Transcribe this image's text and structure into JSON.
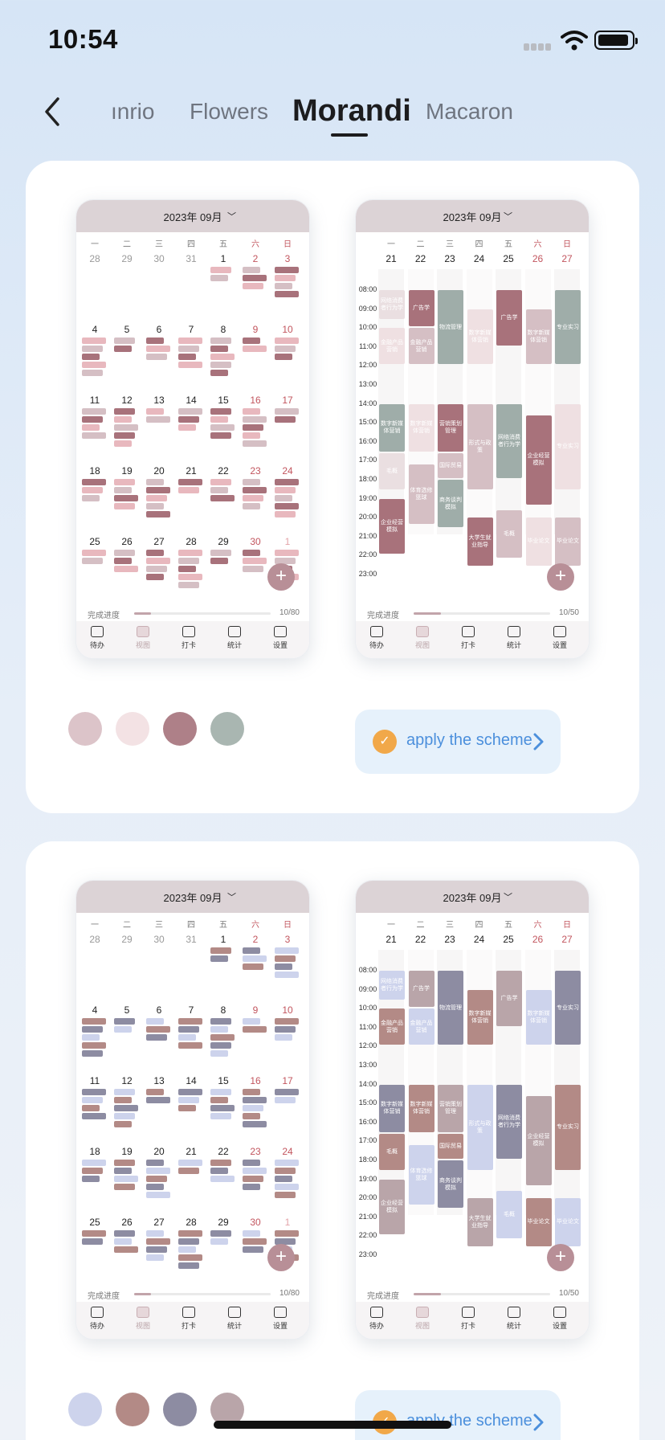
{
  "status_bar": {
    "time": "10:54"
  },
  "nav": {
    "tabs": [
      {
        "label": "ınrio",
        "active": false
      },
      {
        "label": "Flowers",
        "active": false
      },
      {
        "label": "Morandi",
        "active": true
      },
      {
        "label": "Macaron",
        "active": false
      }
    ]
  },
  "schemes": [
    {
      "month_calendar": {
        "title": "2023年 09月",
        "weekdays": [
          "一",
          "二",
          "三",
          "四",
          "五",
          "六",
          "日"
        ],
        "weeks": [
          [
            "28",
            "29",
            "30",
            "31",
            "1",
            "2",
            "3"
          ],
          [
            "4",
            "5",
            "6",
            "7",
            "8",
            "9",
            "10"
          ],
          [
            "11",
            "12",
            "13",
            "14",
            "15",
            "16",
            "17"
          ],
          [
            "18",
            "19",
            "20",
            "21",
            "22",
            "23",
            "24"
          ],
          [
            "25",
            "26",
            "27",
            "28",
            "29",
            "30",
            "1"
          ]
        ],
        "progress_label": "完成进度",
        "progress_value": "10/80",
        "progress_fraction": 0.125
      },
      "week_calendar": {
        "title": "2023年 09月",
        "weekdays": [
          "一",
          "二",
          "三",
          "四",
          "五",
          "六",
          "日"
        ],
        "dates": [
          "21",
          "22",
          "23",
          "24",
          "25",
          "26",
          "27"
        ],
        "hours": [
          "08:00",
          "09:00",
          "10:00",
          "11:00",
          "12:00",
          "13:00",
          "14:00",
          "15:00",
          "16:00",
          "17:00",
          "18:00",
          "19:00",
          "20:00",
          "21:00",
          "22:00",
          "23:00"
        ],
        "blocks": [
          {
            "day": 0,
            "start": 8.0,
            "end": 9.6,
            "text": "网络消费者行为学",
            "color": "#eadfe1",
            "textcolor": "#fff"
          },
          {
            "day": 0,
            "start": 10.0,
            "end": 12.0,
            "text": "金融产品营销",
            "color": "#efe0e2",
            "textcolor": "#fff"
          },
          {
            "day": 0,
            "start": 14.0,
            "end": 16.6,
            "text": "数字新媒体营销",
            "color": "#9fada9",
            "textcolor": "#fff"
          },
          {
            "day": 0,
            "start": 16.6,
            "end": 18.6,
            "text": "毛概",
            "color": "#eadfe1",
            "textcolor": "#fff"
          },
          {
            "day": 0,
            "start": 19.0,
            "end": 22.0,
            "text": "企业经营模拟",
            "color": "#a8727b",
            "textcolor": "#fff"
          },
          {
            "day": 1,
            "start": 8.0,
            "end": 10.0,
            "text": "广告学",
            "color": "#a8727b",
            "textcolor": "#fff"
          },
          {
            "day": 1,
            "start": 10.0,
            "end": 12.0,
            "text": "金融产品营销",
            "color": "#d5bfc4",
            "textcolor": "#fff"
          },
          {
            "day": 1,
            "start": 14.0,
            "end": 16.6,
            "text": "数字新媒体营销",
            "color": "#efe0e2",
            "textcolor": "#fff"
          },
          {
            "day": 1,
            "start": 17.2,
            "end": 20.4,
            "text": "体育选修篮球",
            "color": "#d5bfc4",
            "textcolor": "#fff"
          },
          {
            "day": 2,
            "start": 8.0,
            "end": 12.0,
            "text": "物流管理",
            "color": "#9fada9",
            "textcolor": "#fff"
          },
          {
            "day": 2,
            "start": 14.0,
            "end": 16.6,
            "text": "营销策划管理",
            "color": "#a8727b",
            "textcolor": "#fff"
          },
          {
            "day": 2,
            "start": 16.6,
            "end": 18.0,
            "text": "国际贸易",
            "color": "#d5bfc4",
            "textcolor": "#fff"
          },
          {
            "day": 2,
            "start": 18.0,
            "end": 20.6,
            "text": "商务谈判模拟",
            "color": "#9fada9",
            "textcolor": "#fff"
          },
          {
            "day": 3,
            "start": 9.0,
            "end": 12.0,
            "text": "数字新媒体营销",
            "color": "#efe0e2",
            "textcolor": "#fff"
          },
          {
            "day": 3,
            "start": 14.0,
            "end": 18.6,
            "text": "形式与政策",
            "color": "#d5bfc4",
            "textcolor": "#fff"
          },
          {
            "day": 3,
            "start": 20.0,
            "end": 22.6,
            "text": "大学生就业指导",
            "color": "#a8727b",
            "textcolor": "#fff"
          },
          {
            "day": 4,
            "start": 8.0,
            "end": 11.0,
            "text": "广告学",
            "color": "#a8727b",
            "textcolor": "#fff"
          },
          {
            "day": 4,
            "start": 14.0,
            "end": 18.0,
            "text": "网络消费者行为学",
            "color": "#9fada9",
            "textcolor": "#fff"
          },
          {
            "day": 4,
            "start": 19.6,
            "end": 22.2,
            "text": "毛概",
            "color": "#d5bfc4",
            "textcolor": "#fff"
          },
          {
            "day": 5,
            "start": 9.0,
            "end": 12.0,
            "text": "数字新媒体营销",
            "color": "#d5bfc4",
            "textcolor": "#fff"
          },
          {
            "day": 5,
            "start": 14.6,
            "end": 19.4,
            "text": "企业经营模拟",
            "color": "#a8727b",
            "textcolor": "#fff"
          },
          {
            "day": 5,
            "start": 20.0,
            "end": 22.6,
            "text": "毕业论文",
            "color": "#efe0e2",
            "textcolor": "#fff"
          },
          {
            "day": 6,
            "start": 8.0,
            "end": 12.0,
            "text": "专业实习",
            "color": "#9fada9",
            "textcolor": "#fff"
          },
          {
            "day": 6,
            "start": 14.0,
            "end": 18.6,
            "text": "专业实习",
            "color": "#efe0e2",
            "textcolor": "#fff"
          },
          {
            "day": 6,
            "start": 20.0,
            "end": 22.6,
            "text": "毕业论文",
            "color": "#d5bfc4",
            "textcolor": "#fff"
          }
        ],
        "progress_label": "完成进度",
        "progress_value": "10/50",
        "progress_fraction": 0.2
      },
      "tabbar": [
        "待办",
        "视图",
        "打卡",
        "统计",
        "设置"
      ],
      "colors": [
        "#dcc4c9",
        "#f3e2e4",
        "#ae8088",
        "#a9b6b1"
      ],
      "apply_label": "apply the scheme"
    },
    {
      "month_calendar": {
        "title": "2023年 09月",
        "weekdays": [
          "一",
          "二",
          "三",
          "四",
          "五",
          "六",
          "日"
        ],
        "weeks": [
          [
            "28",
            "29",
            "30",
            "31",
            "1",
            "2",
            "3"
          ],
          [
            "4",
            "5",
            "6",
            "7",
            "8",
            "9",
            "10"
          ],
          [
            "11",
            "12",
            "13",
            "14",
            "15",
            "16",
            "17"
          ],
          [
            "18",
            "19",
            "20",
            "21",
            "22",
            "23",
            "24"
          ],
          [
            "25",
            "26",
            "27",
            "28",
            "29",
            "30",
            "1"
          ]
        ],
        "progress_label": "完成进度",
        "progress_value": "10/80",
        "progress_fraction": 0.125
      },
      "week_calendar": {
        "title": "2023年 09月",
        "weekdays": [
          "一",
          "二",
          "三",
          "四",
          "五",
          "六",
          "日"
        ],
        "dates": [
          "21",
          "22",
          "23",
          "24",
          "25",
          "26",
          "27"
        ],
        "hours": [
          "08:00",
          "09:00",
          "10:00",
          "11:00",
          "12:00",
          "13:00",
          "14:00",
          "15:00",
          "16:00",
          "17:00",
          "18:00",
          "19:00",
          "20:00",
          "21:00",
          "22:00",
          "23:00"
        ],
        "blocks": [
          {
            "day": 0,
            "start": 8.0,
            "end": 9.6,
            "text": "网络消费者行为学",
            "color": "#cdd3ec",
            "textcolor": "#fff"
          },
          {
            "day": 0,
            "start": 10.0,
            "end": 12.0,
            "text": "金融产品营销",
            "color": "#b38a86",
            "textcolor": "#fff"
          },
          {
            "day": 0,
            "start": 14.0,
            "end": 16.6,
            "text": "数字新媒体营销",
            "color": "#8d8ca2",
            "textcolor": "#fff"
          },
          {
            "day": 0,
            "start": 16.6,
            "end": 18.6,
            "text": "毛概",
            "color": "#b38a86",
            "textcolor": "#fff"
          },
          {
            "day": 0,
            "start": 19.0,
            "end": 22.0,
            "text": "企业经营模拟",
            "color": "#b9a5a9",
            "textcolor": "#fff"
          },
          {
            "day": 1,
            "start": 8.0,
            "end": 10.0,
            "text": "广告学",
            "color": "#b9a5a9",
            "textcolor": "#fff"
          },
          {
            "day": 1,
            "start": 10.0,
            "end": 12.0,
            "text": "金融产品营销",
            "color": "#cdd3ec",
            "textcolor": "#fff"
          },
          {
            "day": 1,
            "start": 14.0,
            "end": 16.6,
            "text": "数字新媒体营销",
            "color": "#b38a86",
            "textcolor": "#fff"
          },
          {
            "day": 1,
            "start": 17.2,
            "end": 20.4,
            "text": "体育选修篮球",
            "color": "#cdd3ec",
            "textcolor": "#fff"
          },
          {
            "day": 2,
            "start": 8.0,
            "end": 12.0,
            "text": "物流管理",
            "color": "#8d8ca2",
            "textcolor": "#fff"
          },
          {
            "day": 2,
            "start": 14.0,
            "end": 16.6,
            "text": "营销策划管理",
            "color": "#b9a5a9",
            "textcolor": "#fff"
          },
          {
            "day": 2,
            "start": 16.6,
            "end": 18.0,
            "text": "国际贸易",
            "color": "#b38a86",
            "textcolor": "#fff"
          },
          {
            "day": 2,
            "start": 18.0,
            "end": 20.6,
            "text": "商务谈判模拟",
            "color": "#8d8ca2",
            "textcolor": "#fff"
          },
          {
            "day": 3,
            "start": 9.0,
            "end": 12.0,
            "text": "数字新媒体营销",
            "color": "#b38a86",
            "textcolor": "#fff"
          },
          {
            "day": 3,
            "start": 14.0,
            "end": 18.6,
            "text": "形式与政策",
            "color": "#cdd3ec",
            "textcolor": "#fff"
          },
          {
            "day": 3,
            "start": 20.0,
            "end": 22.6,
            "text": "大学生就业指导",
            "color": "#b9a5a9",
            "textcolor": "#fff"
          },
          {
            "day": 4,
            "start": 8.0,
            "end": 11.0,
            "text": "广告学",
            "color": "#b9a5a9",
            "textcolor": "#fff"
          },
          {
            "day": 4,
            "start": 14.0,
            "end": 18.0,
            "text": "网络消费者行为学",
            "color": "#8d8ca2",
            "textcolor": "#fff"
          },
          {
            "day": 4,
            "start": 19.6,
            "end": 22.2,
            "text": "毛概",
            "color": "#cdd3ec",
            "textcolor": "#fff"
          },
          {
            "day": 5,
            "start": 9.0,
            "end": 12.0,
            "text": "数字新媒体营销",
            "color": "#cdd3ec",
            "textcolor": "#fff"
          },
          {
            "day": 5,
            "start": 14.6,
            "end": 19.4,
            "text": "企业经营模拟",
            "color": "#b9a5a9",
            "textcolor": "#fff"
          },
          {
            "day": 5,
            "start": 20.0,
            "end": 22.6,
            "text": "毕业论文",
            "color": "#b38a86",
            "textcolor": "#fff"
          },
          {
            "day": 6,
            "start": 8.0,
            "end": 12.0,
            "text": "专业实习",
            "color": "#8d8ca2",
            "textcolor": "#fff"
          },
          {
            "day": 6,
            "start": 14.0,
            "end": 18.6,
            "text": "专业实习",
            "color": "#b38a86",
            "textcolor": "#fff"
          },
          {
            "day": 6,
            "start": 20.0,
            "end": 22.6,
            "text": "毕业论文",
            "color": "#cdd3ec",
            "textcolor": "#fff"
          }
        ],
        "progress_label": "完成进度",
        "progress_value": "10/50",
        "progress_fraction": 0.2
      },
      "tabbar": [
        "待办",
        "视图",
        "打卡",
        "统计",
        "设置"
      ],
      "colors": [
        "#cdd3ec",
        "#b38a86",
        "#8d8ca2",
        "#b9a5a9"
      ],
      "apply_label": "apply the scheme"
    }
  ]
}
